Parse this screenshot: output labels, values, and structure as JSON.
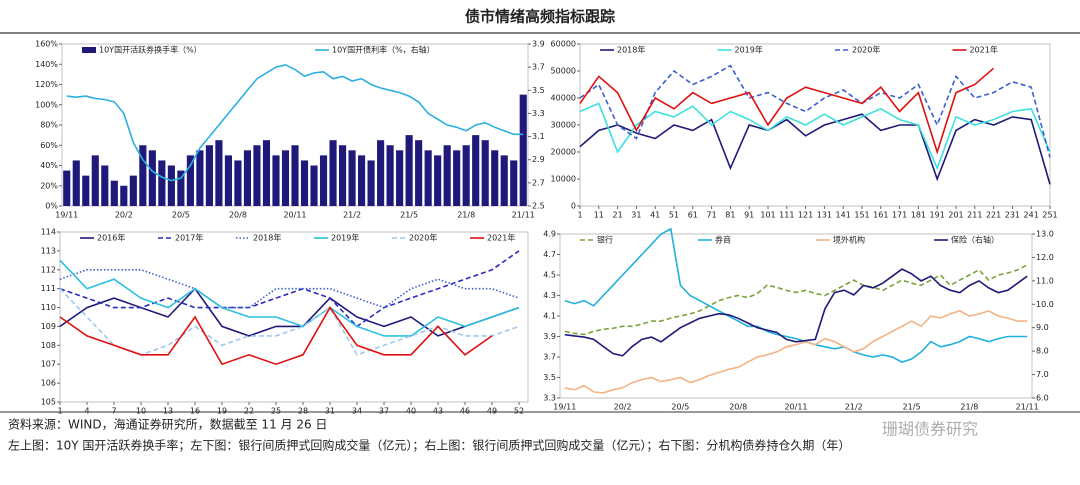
{
  "title": "债市情绪高频指标跟踪",
  "source": [
    "资料来源：WIND，海通证券研究所，数据截至 11 月 26 日",
    "左上图：10Y 国开活跃券换手率；左下图：银行间质押式回购成交量（亿元）；右上图：银行间质押式回购成交量（亿元）；右下图：分机构债券持仓久期（年）"
  ],
  "watermark": "珊瑚债券研究",
  "chart_data": [
    {
      "type": "combo",
      "categories": [
        "19/11",
        null,
        null,
        null,
        null,
        null,
        "20/2",
        null,
        null,
        null,
        null,
        null,
        "20/5",
        null,
        null,
        null,
        null,
        null,
        "20/8",
        null,
        null,
        null,
        null,
        null,
        "20/11",
        null,
        null,
        null,
        null,
        null,
        "21/2",
        null,
        null,
        null,
        null,
        null,
        "21/5",
        null,
        null,
        null,
        null,
        null,
        "21/8",
        null,
        null,
        null,
        null,
        null,
        "21/11"
      ],
      "ylim": [
        0,
        160
      ],
      "yticks": [
        {
          "value": 0,
          "label": "0%"
        },
        {
          "value": 20,
          "label": "20%"
        },
        {
          "value": 40,
          "label": "40%"
        },
        {
          "value": 60,
          "label": "60%"
        },
        {
          "value": 80,
          "label": "80%"
        },
        {
          "value": 100,
          "label": "100%"
        },
        {
          "value": 120,
          "label": "120%"
        },
        {
          "value": 140,
          "label": "140%"
        },
        {
          "value": 160,
          "label": "160%"
        }
      ],
      "y2lim": [
        2.5,
        3.9
      ],
      "y2ticks": [
        2.5,
        2.7,
        2.9,
        3.1,
        3.3,
        3.5,
        3.7,
        3.9
      ],
      "series": [
        {
          "name": "10Y国开活跃券换手率（%）",
          "type": "bar",
          "color": "#1f1a7a",
          "values": [
            35,
            45,
            30,
            50,
            40,
            25,
            20,
            30,
            60,
            55,
            45,
            40,
            35,
            50,
            55,
            60,
            65,
            50,
            45,
            55,
            60,
            65,
            50,
            55,
            60,
            45,
            40,
            50,
            65,
            60,
            55,
            50,
            45,
            65,
            60,
            55,
            70,
            65,
            55,
            50,
            60,
            55,
            60,
            70,
            65,
            55,
            50,
            45,
            110
          ]
        },
        {
          "name": "10Y国开债利率（%，右轴）",
          "type": "line",
          "axis": "y2",
          "color": "#2bb0e0",
          "values": [
            3.45,
            3.44,
            3.45,
            3.43,
            3.42,
            3.4,
            3.3,
            3.05,
            2.9,
            2.8,
            2.75,
            2.72,
            2.74,
            2.85,
            3.0,
            3.1,
            3.2,
            3.3,
            3.4,
            3.5,
            3.6,
            3.65,
            3.7,
            3.72,
            3.68,
            3.62,
            3.65,
            3.66,
            3.6,
            3.62,
            3.58,
            3.6,
            3.55,
            3.52,
            3.5,
            3.48,
            3.45,
            3.4,
            3.3,
            3.25,
            3.2,
            3.18,
            3.15,
            3.2,
            3.22,
            3.18,
            3.15,
            3.12,
            3.12
          ]
        }
      ]
    },
    {
      "type": "line",
      "x": [
        1,
        11,
        21,
        31,
        41,
        51,
        61,
        71,
        81,
        91,
        101,
        111,
        121,
        131,
        141,
        151,
        161,
        171,
        181,
        191,
        201,
        211,
        221,
        231,
        241,
        251
      ],
      "xlim": [
        1,
        251
      ],
      "xticks": [
        1,
        11,
        21,
        31,
        41,
        51,
        61,
        71,
        81,
        91,
        101,
        111,
        121,
        131,
        141,
        151,
        161,
        171,
        181,
        191,
        201,
        211,
        221,
        231,
        241,
        251
      ],
      "ylim": [
        0,
        60000
      ],
      "yticks": [
        0,
        10000,
        20000,
        30000,
        40000,
        50000,
        60000
      ],
      "series": [
        {
          "name": "2018年",
          "color": "#1f1a7a",
          "dash": "solid",
          "values": [
            22000,
            28000,
            30000,
            27000,
            25000,
            30000,
            28000,
            32000,
            14000,
            30000,
            28000,
            32000,
            26000,
            30000,
            32000,
            34000,
            28000,
            30000,
            30000,
            10000,
            28000,
            32000,
            30000,
            33000,
            32000,
            8000
          ]
        },
        {
          "name": "2019年",
          "color": "#3fe0e0",
          "dash": "solid",
          "values": [
            35000,
            38000,
            20000,
            30000,
            35000,
            33000,
            37000,
            30000,
            35000,
            32000,
            28000,
            33000,
            30000,
            34000,
            30000,
            33000,
            36000,
            32000,
            30000,
            14000,
            33000,
            30000,
            32000,
            35000,
            36000,
            20000
          ]
        },
        {
          "name": "2020年",
          "color": "#3a5fd0",
          "dash": "dashed",
          "values": [
            40000,
            45000,
            30000,
            25000,
            42000,
            50000,
            45000,
            48000,
            52000,
            40000,
            42000,
            38000,
            35000,
            40000,
            43000,
            38000,
            42000,
            40000,
            45000,
            30000,
            48000,
            40000,
            42000,
            46000,
            44000,
            18000
          ]
        },
        {
          "name": "2021年",
          "color": "#e01010",
          "dash": "solid",
          "values": [
            38000,
            48000,
            42000,
            28000,
            40000,
            36000,
            42000,
            38000,
            40000,
            42000,
            30000,
            40000,
            44000,
            42000,
            40000,
            38000,
            44000,
            35000,
            42000,
            20000,
            42000,
            45000,
            51000,
            null,
            null,
            null
          ]
        }
      ]
    },
    {
      "type": "line",
      "x": [
        1,
        4,
        7,
        10,
        13,
        16,
        19,
        22,
        25,
        28,
        31,
        34,
        37,
        40,
        43,
        46,
        49,
        52
      ],
      "xlim": [
        1,
        53
      ],
      "xticks": [
        1,
        4,
        7,
        10,
        13,
        16,
        19,
        22,
        25,
        28,
        31,
        34,
        37,
        40,
        43,
        46,
        49,
        52
      ],
      "ylim": [
        105,
        114
      ],
      "yticks": [
        105,
        106,
        107,
        108,
        109,
        110,
        111,
        112,
        113,
        114
      ],
      "series": [
        {
          "name": "2016年",
          "color": "#1f1a7a",
          "dash": "solid",
          "values": [
            109,
            110,
            110.5,
            110,
            109.5,
            111,
            109,
            108.5,
            109,
            109,
            110.5,
            109.5,
            109,
            109.5,
            108.5,
            109,
            109.5,
            110
          ]
        },
        {
          "name": "2017年",
          "color": "#2a2ac0",
          "dash": "dashed",
          "values": [
            111,
            110.5,
            110,
            110,
            110.5,
            110,
            110,
            110,
            110.5,
            111,
            110.5,
            109,
            110,
            110.5,
            111,
            111.5,
            112,
            113
          ]
        },
        {
          "name": "2018年",
          "color": "#3a5fd0",
          "dash": "dotted",
          "values": [
            111.5,
            112,
            112,
            112,
            111.5,
            111,
            110,
            110,
            111,
            111,
            111,
            110.5,
            110,
            111,
            111.5,
            111,
            111,
            110.5
          ]
        },
        {
          "name": "2019年",
          "color": "#2bc0e0",
          "dash": "solid",
          "values": [
            112.5,
            111,
            111.5,
            110.5,
            110,
            111,
            110,
            109.5,
            109.5,
            109,
            110,
            109,
            108.5,
            108.5,
            109.5,
            109,
            109.5,
            110
          ]
        },
        {
          "name": "2020年",
          "color": "#9ec8ee",
          "dash": "dashed",
          "values": [
            111,
            109.5,
            108,
            107.5,
            108,
            109,
            108,
            108.5,
            108.5,
            109,
            110,
            107.5,
            108,
            108.5,
            109,
            108.5,
            108.5,
            109
          ]
        },
        {
          "name": "2021年",
          "color": "#e01010",
          "dash": "solid",
          "values": [
            109.5,
            108.5,
            108,
            107.5,
            107.5,
            109.5,
            107,
            107.5,
            107,
            107.5,
            110,
            108,
            107.5,
            107.5,
            109,
            107.5,
            108.5,
            null
          ]
        }
      ]
    },
    {
      "type": "line",
      "categories": [
        "19/11",
        null,
        null,
        null,
        null,
        null,
        "20/2",
        null,
        null,
        null,
        null,
        null,
        "20/5",
        null,
        null,
        null,
        null,
        null,
        "20/8",
        null,
        null,
        null,
        null,
        null,
        "20/11",
        null,
        null,
        null,
        null,
        null,
        "21/2",
        null,
        null,
        null,
        null,
        null,
        "21/5",
        null,
        null,
        null,
        null,
        null,
        "21/8",
        null,
        null,
        null,
        null,
        null,
        "21/11"
      ],
      "ylim": [
        3.3,
        4.9
      ],
      "yticks": [
        3.3,
        3.5,
        3.7,
        3.9,
        4.1,
        4.3,
        4.5,
        4.7,
        4.9
      ],
      "y2lim": [
        6,
        13
      ],
      "y2ticks": [
        {
          "value": 6,
          "label": "6.0"
        },
        {
          "value": 7,
          "label": "7.0"
        },
        {
          "value": 8,
          "label": "8.0"
        },
        {
          "value": 9,
          "label": "9.0"
        },
        {
          "value": 10,
          "label": "10.0"
        },
        {
          "value": 11,
          "label": "11.0"
        },
        {
          "value": 12,
          "label": "12.0"
        },
        {
          "value": 13,
          "label": "13.0"
        }
      ],
      "series": [
        {
          "name": "银行",
          "color": "#7aa23a",
          "dash": "dashed",
          "values": [
            3.95,
            3.93,
            3.92,
            3.95,
            3.97,
            3.98,
            4.0,
            4.0,
            4.02,
            4.05,
            4.05,
            4.08,
            4.1,
            4.12,
            4.15,
            4.2,
            4.25,
            4.28,
            4.3,
            4.28,
            4.32,
            4.4,
            4.38,
            4.35,
            4.33,
            4.35,
            4.32,
            4.3,
            4.35,
            4.4,
            4.45,
            4.4,
            4.38,
            4.35,
            4.4,
            4.45,
            4.42,
            4.4,
            4.45,
            4.5,
            4.4,
            4.45,
            4.5,
            4.55,
            4.45,
            4.5,
            4.52,
            4.55,
            4.6
          ]
        },
        {
          "name": "券商",
          "color": "#1fb0e0",
          "dash": "solid",
          "values": [
            4.25,
            4.22,
            4.25,
            4.2,
            4.3,
            4.4,
            4.5,
            4.6,
            4.7,
            4.8,
            4.9,
            4.95,
            4.4,
            4.3,
            4.25,
            4.2,
            4.15,
            4.1,
            4.05,
            4.0,
            4.0,
            3.95,
            3.92,
            3.9,
            3.88,
            3.85,
            3.82,
            3.8,
            3.78,
            3.8,
            3.75,
            3.72,
            3.7,
            3.72,
            3.7,
            3.65,
            3.68,
            3.75,
            3.85,
            3.8,
            3.82,
            3.85,
            3.9,
            3.88,
            3.85,
            3.88,
            3.9,
            3.9,
            3.9
          ]
        },
        {
          "name": "境外机构",
          "color": "#f4b183",
          "dash": "solid",
          "values": [
            3.4,
            3.38,
            3.42,
            3.36,
            3.35,
            3.38,
            3.4,
            3.45,
            3.48,
            3.5,
            3.46,
            3.48,
            3.5,
            3.45,
            3.48,
            3.52,
            3.55,
            3.58,
            3.6,
            3.65,
            3.7,
            3.72,
            3.75,
            3.8,
            3.82,
            3.85,
            3.82,
            3.88,
            3.85,
            3.8,
            3.75,
            3.78,
            3.85,
            3.9,
            3.95,
            4.0,
            4.05,
            4.0,
            4.1,
            4.08,
            4.12,
            4.15,
            4.1,
            4.12,
            4.15,
            4.1,
            4.08,
            4.05,
            4.05
          ]
        },
        {
          "name": "保险（右轴）",
          "color": "#1f1a7a",
          "dash": "solid",
          "axis": "y2",
          "values": [
            8.7,
            8.65,
            8.6,
            8.5,
            8.2,
            7.9,
            7.8,
            8.2,
            8.5,
            8.6,
            8.4,
            8.7,
            9.0,
            9.2,
            9.4,
            9.5,
            9.6,
            9.55,
            9.4,
            9.2,
            9.0,
            8.9,
            8.8,
            8.5,
            8.4,
            8.45,
            8.5,
            9.8,
            10.5,
            10.6,
            10.4,
            10.8,
            10.7,
            10.9,
            11.2,
            11.5,
            11.3,
            11.0,
            11.2,
            10.8,
            10.6,
            10.5,
            10.8,
            11.0,
            10.7,
            10.5,
            10.6,
            10.9,
            11.2
          ]
        }
      ]
    }
  ]
}
